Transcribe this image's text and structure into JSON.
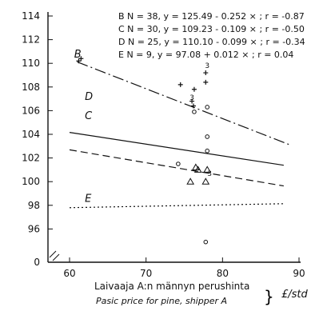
{
  "chart_data": {
    "type": "scatter",
    "title": "",
    "xlabel": "Laivaaja A:n männyn perushinta",
    "xlabel_en": "Pasic price for pine, shipper  A",
    "unit": "£/std",
    "xlim": [
      60,
      90
    ],
    "ylim": [
      94,
      114
    ],
    "x_ticks": [
      "60",
      "70",
      "80",
      "90"
    ],
    "y_ticks": [
      "96",
      "98",
      "100",
      "102",
      "104",
      "106",
      "108",
      "110",
      "112",
      "114"
    ],
    "y_break_label": "0",
    "legend": [
      {
        "id": "B",
        "text": "B  N = 38, y = 125.49 - 0.252 × ;  r = -0.87"
      },
      {
        "id": "C",
        "text": "C  N = 30, y = 109.23 - 0.109 × ;  r = -0.50"
      },
      {
        "id": "D",
        "text": "D  N = 25, y = 110.10 - 0.099 × ;  r = -0.34"
      },
      {
        "id": "E",
        "text": "E  N =   9, y = 97.08 + 0.012 × ;  r =  0.04"
      }
    ],
    "series": [
      {
        "name": "B",
        "intercept": 125.49,
        "slope": -0.252,
        "x_range": [
          61,
          89
        ],
        "style": "dashdot",
        "label": "B",
        "points": [
          [
            61.2,
            110.2
          ],
          [
            61.5,
            110.4
          ],
          [
            74.5,
            108.2
          ],
          [
            76.3,
            107.8
          ],
          [
            77.8,
            108.4
          ],
          [
            77.8,
            109.2
          ],
          [
            76.0,
            106.8
          ],
          [
            76.2,
            106.4
          ]
        ]
      },
      {
        "name": "C",
        "intercept": 109.23,
        "slope": -0.109,
        "x_range": [
          60,
          88
        ],
        "style": "dashed",
        "label": "C",
        "points": [
          [
            76.5,
            101.2
          ],
          [
            76.8,
            101.0
          ],
          [
            78.0,
            101.0
          ],
          [
            75.8,
            100.0
          ],
          [
            77.8,
            100.0
          ]
        ]
      },
      {
        "name": "D",
        "intercept": 110.1,
        "slope": -0.099,
        "x_range": [
          60,
          88
        ],
        "style": "solid",
        "label": "D",
        "points": [
          [
            74.2,
            101.5
          ],
          [
            76.3,
            105.9
          ],
          [
            78.0,
            106.3
          ],
          [
            78.0,
            103.8
          ],
          [
            78.0,
            102.6
          ],
          [
            77.8,
            94.9
          ]
        ]
      },
      {
        "name": "E",
        "intercept": 97.08,
        "slope": 0.012,
        "x_range": [
          60,
          88
        ],
        "style": "dotted",
        "label": "E",
        "points": []
      }
    ],
    "point_counts": [
      {
        "x": 76.0,
        "y": 106.9,
        "label": "3"
      },
      {
        "x": 78.0,
        "y": 109.6,
        "label": "3"
      },
      {
        "x": 78.3,
        "y": 100.5,
        "label": "3"
      }
    ]
  }
}
